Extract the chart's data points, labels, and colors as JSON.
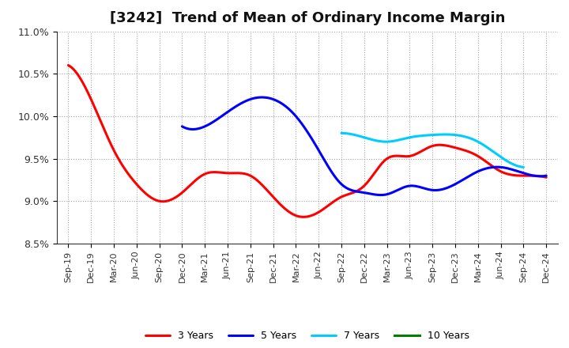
{
  "title": "[3242]  Trend of Mean of Ordinary Income Margin",
  "ylim": [
    0.085,
    0.11
  ],
  "yticks": [
    0.085,
    0.09,
    0.095,
    0.1,
    0.105,
    0.11
  ],
  "ytick_labels": [
    "8.5%",
    "9.0%",
    "9.5%",
    "10.0%",
    "10.5%",
    "11.0%"
  ],
  "xtick_labels": [
    "Sep-19",
    "Dec-19",
    "Mar-20",
    "Jun-20",
    "Sep-20",
    "Dec-20",
    "Mar-21",
    "Jun-21",
    "Sep-21",
    "Dec-21",
    "Mar-22",
    "Jun-22",
    "Sep-22",
    "Dec-22",
    "Mar-23",
    "Jun-23",
    "Sep-23",
    "Dec-23",
    "Mar-24",
    "Jun-24",
    "Sep-24",
    "Dec-24"
  ],
  "series_3yr": {
    "label": "3 Years",
    "color": "#FF0000",
    "data": [
      0.106,
      0.102,
      0.096,
      0.092,
      0.09,
      0.091,
      0.0932,
      0.0933,
      0.093,
      0.0905,
      0.0883,
      0.0887,
      0.0905,
      0.0918,
      0.095,
      0.0953,
      0.0965,
      0.0963,
      0.0953,
      0.0935,
      0.093,
      0.0928
    ]
  },
  "series_5yr": {
    "label": "5 Years",
    "color": "#0000FF",
    "data": [
      null,
      null,
      null,
      null,
      null,
      0.0988,
      0.0988,
      0.1005,
      0.102,
      0.102,
      0.1,
      0.096,
      0.092,
      0.091,
      0.0908,
      0.0918,
      0.0913,
      0.092,
      0.0935,
      0.094,
      0.0933,
      0.093
    ]
  },
  "series_7yr": {
    "label": "7 Years",
    "color": "#00CCFF",
    "data": [
      null,
      null,
      null,
      null,
      null,
      null,
      null,
      null,
      null,
      null,
      null,
      null,
      0.098,
      0.0975,
      0.097,
      0.0975,
      0.0978,
      0.0978,
      0.097,
      0.0952,
      0.094,
      null
    ]
  },
  "series_10yr": {
    "label": "10 Years",
    "color": "#008000",
    "data": [
      null,
      null,
      null,
      null,
      null,
      null,
      null,
      null,
      null,
      null,
      null,
      null,
      null,
      null,
      null,
      null,
      null,
      null,
      null,
      null,
      null,
      null
    ]
  },
  "background_color": "#FFFFFF",
  "grid_color": "#999999",
  "title_fontsize": 13,
  "linewidth": 2.2
}
